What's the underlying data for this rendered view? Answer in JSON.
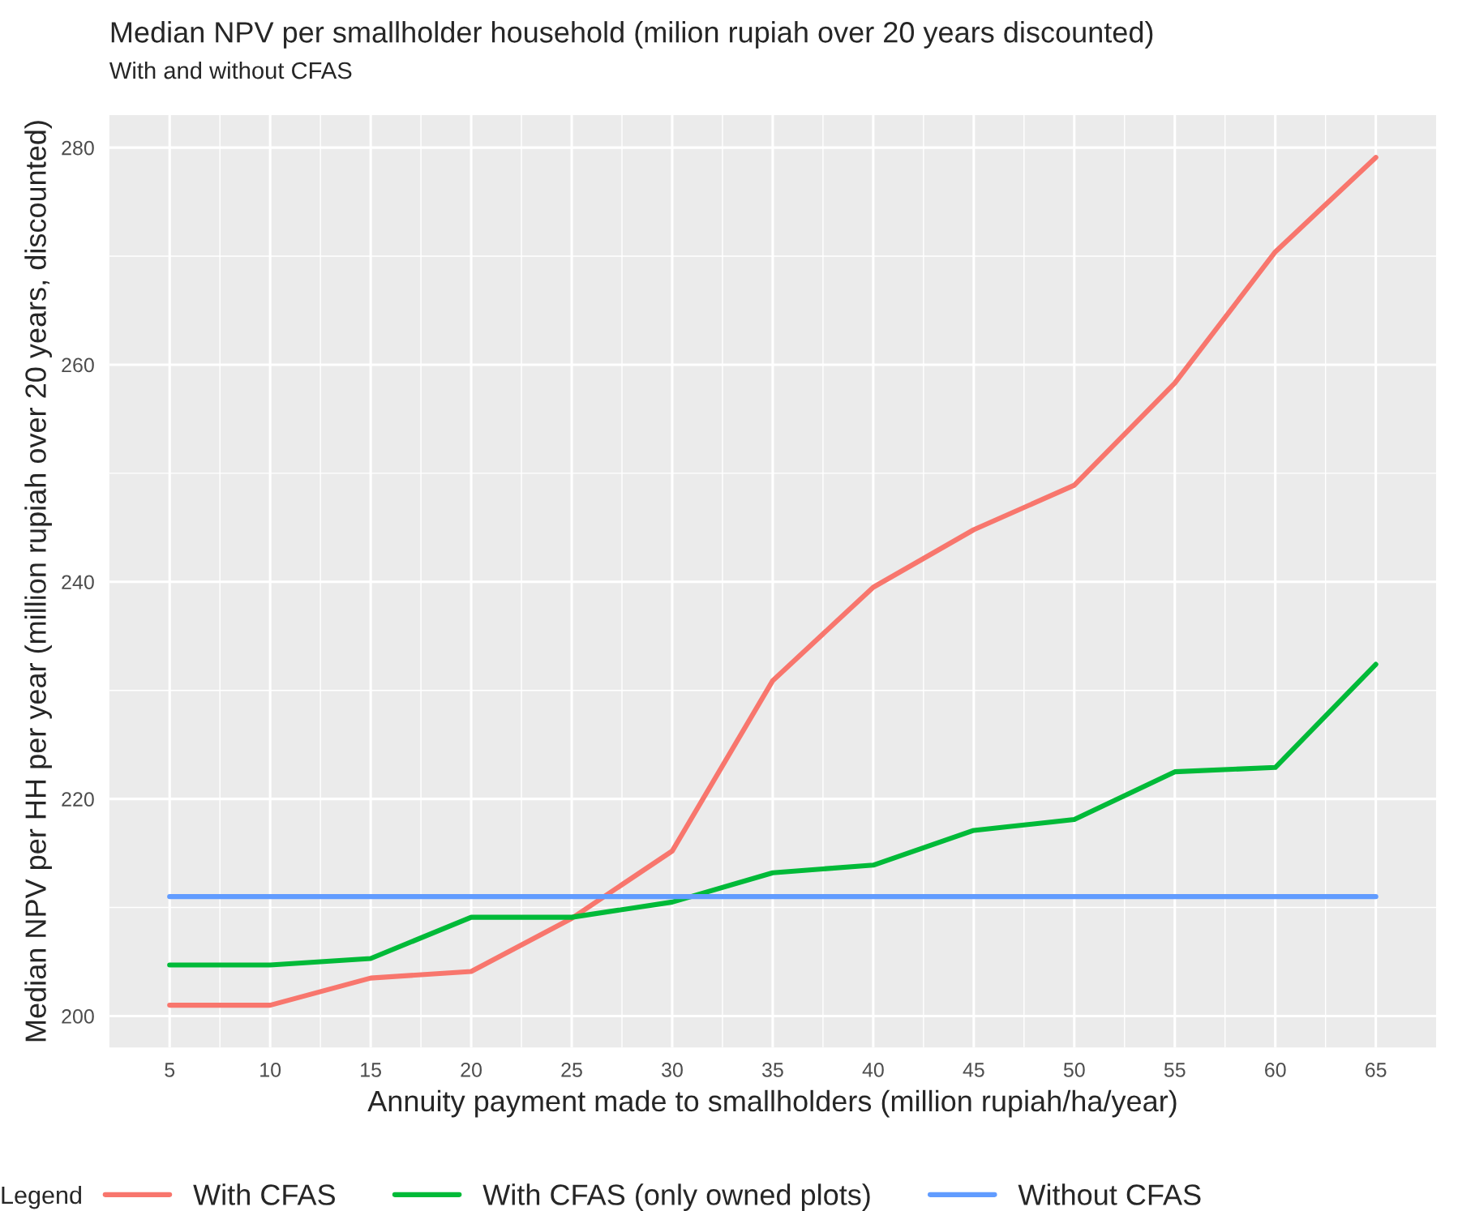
{
  "chart_data": {
    "type": "line",
    "title": "Median NPV per smallholder household (milion rupiah over 20 years discounted)",
    "subtitle": "With and without CFAS",
    "xlabel": "Annuity payment made to smallholders (million rupiah/ha/year)",
    "ylabel": "Median NPV per HH per year (million rupiah over 20 years, discounted)",
    "legend_title": "Legend",
    "x": [
      5,
      10,
      15,
      20,
      25,
      30,
      35,
      40,
      45,
      50,
      55,
      60,
      65
    ],
    "series": [
      {
        "name": "With CFAS",
        "color": "#f8766d",
        "values": [
          201.0,
          201.0,
          203.5,
          204.1,
          209.0,
          215.2,
          230.9,
          239.5,
          244.8,
          248.9,
          258.3,
          270.4,
          279.1
        ]
      },
      {
        "name": "With CFAS (only owned plots)",
        "color": "#00ba38",
        "values": [
          204.7,
          204.7,
          205.3,
          209.1,
          209.1,
          210.5,
          213.2,
          213.9,
          217.1,
          218.1,
          222.5,
          222.9,
          232.4
        ]
      },
      {
        "name": "Without CFAS",
        "color": "#619cff",
        "values": [
          211.0,
          211.0,
          211.0,
          211.0,
          211.0,
          211.0,
          211.0,
          211.0,
          211.0,
          211.0,
          211.0,
          211.0,
          211.0
        ]
      }
    ],
    "xlim": [
      2,
      68
    ],
    "ylim": [
      197.1,
      283
    ],
    "xticks": [
      5,
      10,
      15,
      20,
      25,
      30,
      35,
      40,
      45,
      50,
      55,
      60,
      65
    ],
    "yticks": [
      200,
      220,
      240,
      260,
      280
    ],
    "grid": true,
    "legend": "bottom",
    "line_style": "solid",
    "marker": "none"
  }
}
